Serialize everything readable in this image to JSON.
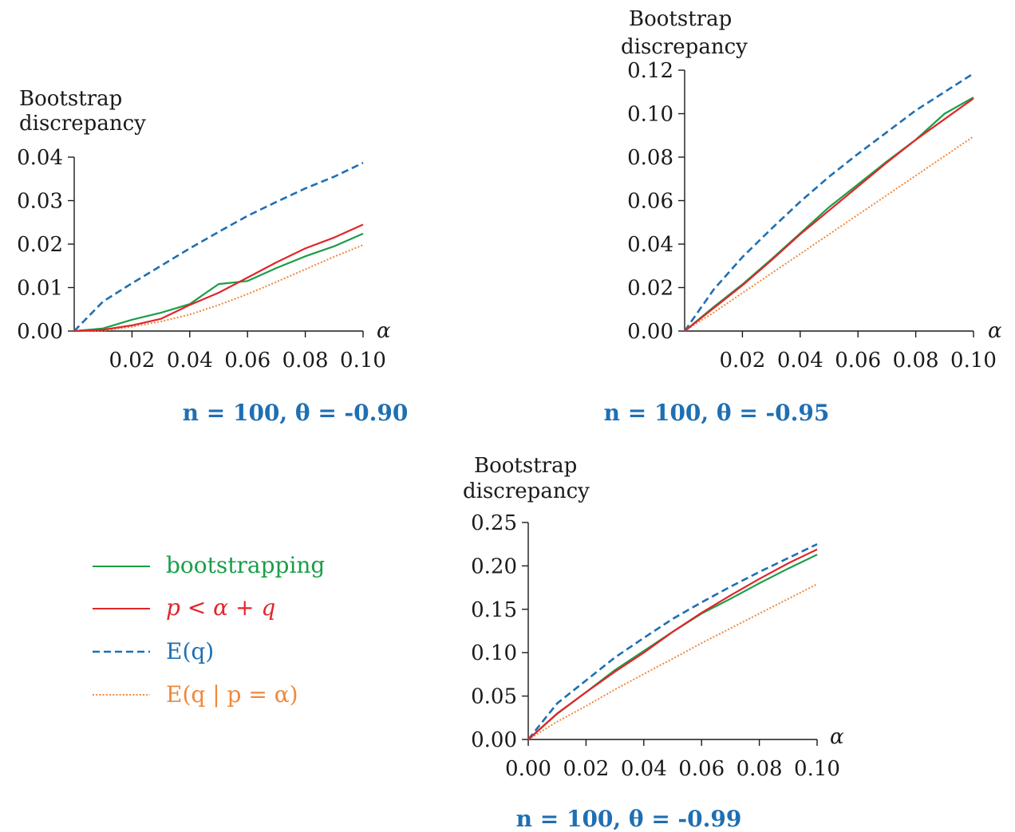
{
  "colors": {
    "bootstrapping": "#1a9e48",
    "p_alpha_q": "#e0262a",
    "Eq": "#1f6fb3",
    "Eq_p_alpha": "#f0883a",
    "axis": "#1a1a1a",
    "caption": "#1f6fb3"
  },
  "legend": {
    "items": [
      {
        "key": "bootstrapping",
        "label": "bootstrapping",
        "style": "solid"
      },
      {
        "key": "p_alpha_q",
        "label": "p < α + q",
        "style": "solid"
      },
      {
        "key": "Eq",
        "label": "E(q)",
        "style": "dashed"
      },
      {
        "key": "Eq_p_alpha",
        "label": "E(q | p = α)",
        "style": "dotted"
      }
    ]
  },
  "chart_data": [
    {
      "type": "line",
      "caption": "n =  100, θ =  -0.90",
      "ylabel_lines": [
        "Bootstrap",
        "discrepancy"
      ],
      "xlabel": "α",
      "xlim": [
        0,
        0.1
      ],
      "ylim": [
        0,
        0.04
      ],
      "xticks": [
        "0.02",
        "0.04",
        "0.06",
        "0.08",
        "0.10"
      ],
      "xtick_values": [
        0.02,
        0.04,
        0.06,
        0.08,
        0.1
      ],
      "yticks": [
        "0.00",
        "0.01",
        "0.02",
        "0.03",
        "0.04"
      ],
      "ytick_values": [
        0,
        0.01,
        0.02,
        0.03,
        0.04
      ],
      "x": [
        0,
        0.01,
        0.02,
        0.03,
        0.04,
        0.05,
        0.06,
        0.07,
        0.08,
        0.09,
        0.1
      ],
      "series": [
        {
          "key": "bootstrapping",
          "values": [
            0,
            0.0006,
            0.0026,
            0.0042,
            0.0062,
            0.0108,
            0.0115,
            0.0145,
            0.0172,
            0.0195,
            0.0224
          ]
        },
        {
          "key": "p_alpha_q",
          "values": [
            0,
            0.0003,
            0.0013,
            0.0028,
            0.006,
            0.0088,
            0.0123,
            0.0158,
            0.019,
            0.0215,
            0.0245
          ]
        },
        {
          "key": "Eq",
          "values": [
            0,
            0.0068,
            0.011,
            0.015,
            0.019,
            0.0228,
            0.0265,
            0.0297,
            0.0328,
            0.0355,
            0.0387
          ]
        },
        {
          "key": "Eq_p_alpha",
          "values": [
            0,
            0.0001,
            0.001,
            0.0022,
            0.0038,
            0.006,
            0.0085,
            0.0113,
            0.0142,
            0.0171,
            0.0198
          ]
        }
      ]
    },
    {
      "type": "line",
      "caption": "n =  100, θ =  -0.95",
      "ylabel_lines": [
        "Bootstrap",
        "discrepancy"
      ],
      "xlabel": "α",
      "xlim": [
        0,
        0.1
      ],
      "ylim": [
        0,
        0.12
      ],
      "xticks": [
        "0.02",
        "0.04",
        "0.06",
        "0.08",
        "0.10"
      ],
      "xtick_values": [
        0.02,
        0.04,
        0.06,
        0.08,
        0.1
      ],
      "yticks": [
        "0.00",
        "0.02",
        "0.04",
        "0.06",
        "0.08",
        "0.10",
        "0.12"
      ],
      "ytick_values": [
        0,
        0.02,
        0.04,
        0.06,
        0.08,
        0.1,
        0.12
      ],
      "x": [
        0,
        0.01,
        0.02,
        0.03,
        0.04,
        0.05,
        0.06,
        0.07,
        0.08,
        0.09,
        0.1
      ],
      "series": [
        {
          "key": "bootstrapping",
          "values": [
            0,
            0.011,
            0.0215,
            0.033,
            0.045,
            0.057,
            0.0675,
            0.078,
            0.088,
            0.1,
            0.1075
          ]
        },
        {
          "key": "p_alpha_q",
          "values": [
            0,
            0.0105,
            0.021,
            0.0325,
            0.0445,
            0.0555,
            0.0665,
            0.0775,
            0.088,
            0.0975,
            0.107
          ]
        },
        {
          "key": "Eq",
          "values": [
            0,
            0.019,
            0.034,
            0.047,
            0.0595,
            0.071,
            0.0815,
            0.0915,
            0.1015,
            0.11,
            0.1185
          ]
        },
        {
          "key": "Eq_p_alpha",
          "values": [
            0,
            0.0085,
            0.0175,
            0.0265,
            0.0355,
            0.0445,
            0.0535,
            0.0625,
            0.0715,
            0.0805,
            0.0895
          ]
        }
      ]
    },
    {
      "type": "line",
      "caption": "n =  100, θ =  -0.99",
      "ylabel_lines": [
        "Bootstrap",
        "discrepancy"
      ],
      "xlabel": "α",
      "xlim": [
        0,
        0.1
      ],
      "ylim": [
        0,
        0.25
      ],
      "xticks": [
        "0.00",
        "0.02",
        "0.04",
        "0.06",
        "0.08",
        "0.10"
      ],
      "xtick_values": [
        0,
        0.02,
        0.04,
        0.06,
        0.08,
        0.1
      ],
      "yticks": [
        "0.00",
        "0.05",
        "0.10",
        "0.15",
        "0.20",
        "0.25"
      ],
      "ytick_values": [
        0,
        0.05,
        0.1,
        0.15,
        0.2,
        0.25
      ],
      "x": [
        0,
        0.01,
        0.02,
        0.03,
        0.04,
        0.05,
        0.06,
        0.07,
        0.08,
        0.09,
        0.1
      ],
      "series": [
        {
          "key": "bootstrapping",
          "values": [
            0,
            0.0295,
            0.0545,
            0.08,
            0.102,
            0.124,
            0.145,
            0.162,
            0.18,
            0.197,
            0.213
          ]
        },
        {
          "key": "p_alpha_q",
          "values": [
            0,
            0.03,
            0.0545,
            0.078,
            0.1,
            0.124,
            0.146,
            0.166,
            0.185,
            0.203,
            0.219
          ]
        },
        {
          "key": "Eq",
          "values": [
            0,
            0.0415,
            0.068,
            0.0945,
            0.117,
            0.139,
            0.158,
            0.176,
            0.193,
            0.209,
            0.225
          ]
        },
        {
          "key": "Eq_p_alpha",
          "values": [
            0,
            0.0205,
            0.0385,
            0.0575,
            0.0755,
            0.093,
            0.111,
            0.128,
            0.145,
            0.162,
            0.179
          ]
        }
      ]
    }
  ]
}
